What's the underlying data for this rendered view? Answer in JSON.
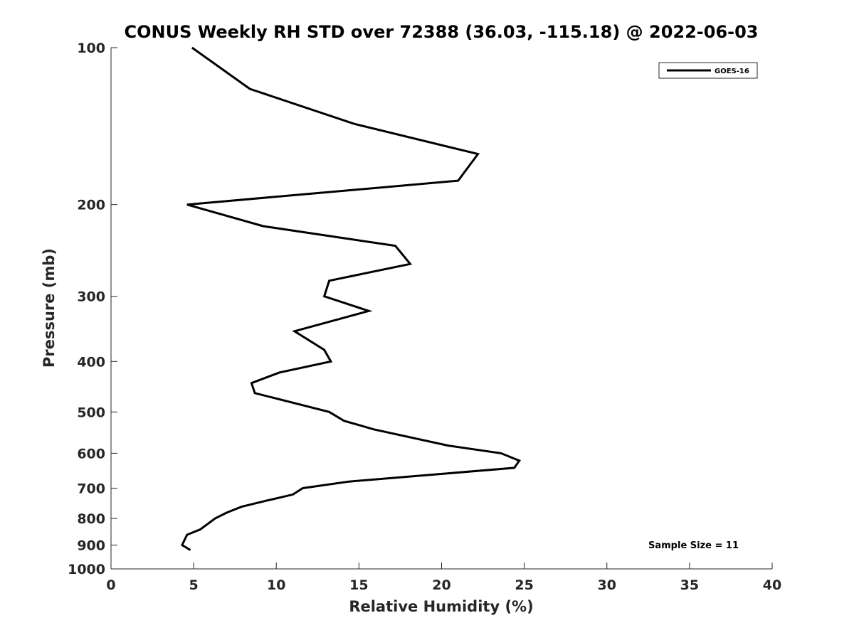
{
  "chart_data": {
    "type": "line",
    "title": "CONUS Weekly RH STD over 72388 (36.03, -115.18) @ 2022-06-03",
    "xlabel": "Relative Humidity (%)",
    "ylabel": "Pressure (mb)",
    "xlim": [
      0,
      40
    ],
    "ylim": [
      1000,
      100
    ],
    "yscale": "log",
    "grid": false,
    "legend_position": "top-right",
    "x_ticks": [
      0,
      5,
      10,
      15,
      20,
      25,
      30,
      35,
      40
    ],
    "y_ticks": [
      100,
      200,
      300,
      400,
      500,
      600,
      700,
      800,
      900,
      1000
    ],
    "series": [
      {
        "name": "GOES-16",
        "color": "#000000",
        "points": [
          {
            "x": 4.9,
            "y": 100
          },
          {
            "x": 8.4,
            "y": 120
          },
          {
            "x": 14.7,
            "y": 140
          },
          {
            "x": 22.2,
            "y": 160
          },
          {
            "x": 21.0,
            "y": 180
          },
          {
            "x": 4.6,
            "y": 200
          },
          {
            "x": 9.2,
            "y": 220
          },
          {
            "x": 17.2,
            "y": 240
          },
          {
            "x": 18.1,
            "y": 260
          },
          {
            "x": 13.2,
            "y": 280
          },
          {
            "x": 12.9,
            "y": 300
          },
          {
            "x": 15.6,
            "y": 320
          },
          {
            "x": 11.1,
            "y": 350
          },
          {
            "x": 12.9,
            "y": 380
          },
          {
            "x": 13.3,
            "y": 400
          },
          {
            "x": 10.2,
            "y": 420
          },
          {
            "x": 8.5,
            "y": 440
          },
          {
            "x": 8.7,
            "y": 460
          },
          {
            "x": 13.2,
            "y": 500
          },
          {
            "x": 14.1,
            "y": 520
          },
          {
            "x": 15.9,
            "y": 540
          },
          {
            "x": 20.4,
            "y": 580
          },
          {
            "x": 23.6,
            "y": 600
          },
          {
            "x": 24.7,
            "y": 620
          },
          {
            "x": 24.4,
            "y": 640
          },
          {
            "x": 14.4,
            "y": 680
          },
          {
            "x": 11.6,
            "y": 700
          },
          {
            "x": 11.0,
            "y": 720
          },
          {
            "x": 9.4,
            "y": 740
          },
          {
            "x": 7.9,
            "y": 760
          },
          {
            "x": 7.0,
            "y": 780
          },
          {
            "x": 6.3,
            "y": 800
          },
          {
            "x": 5.4,
            "y": 840
          },
          {
            "x": 4.6,
            "y": 860
          },
          {
            "x": 4.3,
            "y": 900
          },
          {
            "x": 4.8,
            "y": 920
          }
        ]
      }
    ],
    "annotation": "Sample Size = 11"
  }
}
